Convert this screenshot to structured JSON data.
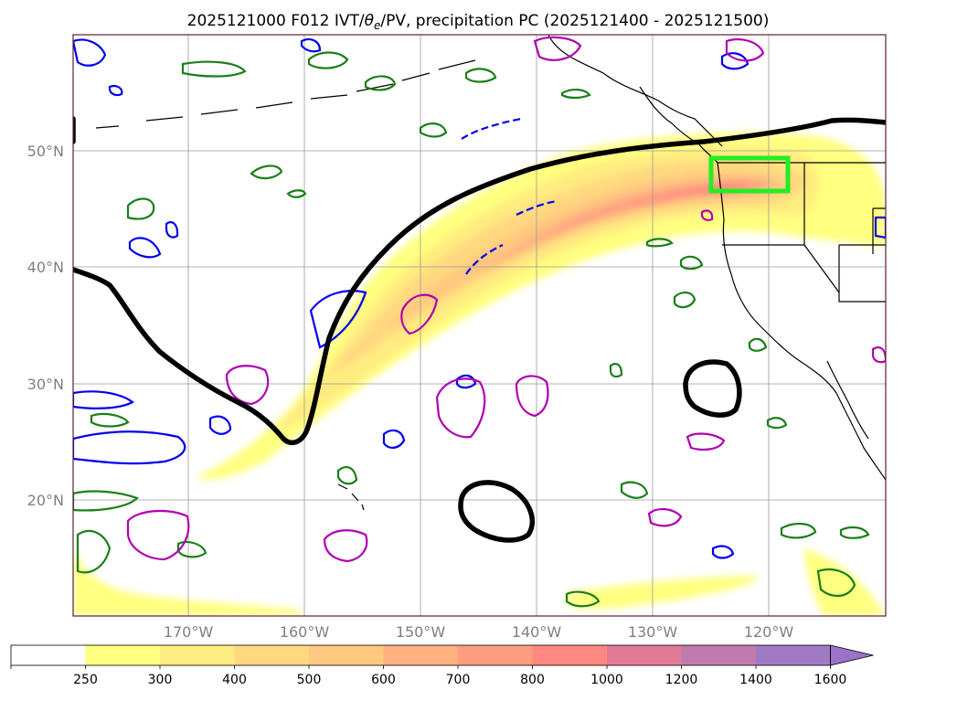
{
  "title": {
    "prefix": "2025121000 F012 IVT/",
    "theta": "θ",
    "theta_sub": "e",
    "suffix": "/PV, precipitation PC (2025121400 - 2025121500)"
  },
  "colors": {
    "frame": "#5b1f3b",
    "grid": "#9a9a9a",
    "tick_label": "#7f7f7f",
    "coast": "#000000",
    "theta_contour": "#000000",
    "green_contour": "#1a7f1a",
    "blue_contour": "#0000ee",
    "magenta_contour": "#b000b0",
    "box": "#22ee22"
  },
  "axes": {
    "lat_labels": [
      "50°N",
      "40°N",
      "30°N",
      "20°N"
    ],
    "lon_labels": [
      "170°W",
      "160°W",
      "150°W",
      "140°W",
      "130°W",
      "120°W"
    ],
    "lat_range": [
      10,
      60
    ],
    "lon_range": [
      -180,
      -110
    ]
  },
  "colorbar": {
    "levels": [
      "250",
      "300",
      "400",
      "500",
      "600",
      "700",
      "800",
      "1000",
      "1200",
      "1400",
      "1600"
    ],
    "colors": [
      "#ffffff",
      "#ffff80",
      "#ffec80",
      "#ffd880",
      "#ffc880",
      "#ffb280",
      "#ff9d80",
      "#ff8880",
      "#e07a96",
      "#c07aae",
      "#a07ac5"
    ],
    "extend": "max"
  },
  "features": {
    "ivt_plume": "IVT shading (integrated vapor transport)",
    "highlight_box": "precipitation region box"
  }
}
